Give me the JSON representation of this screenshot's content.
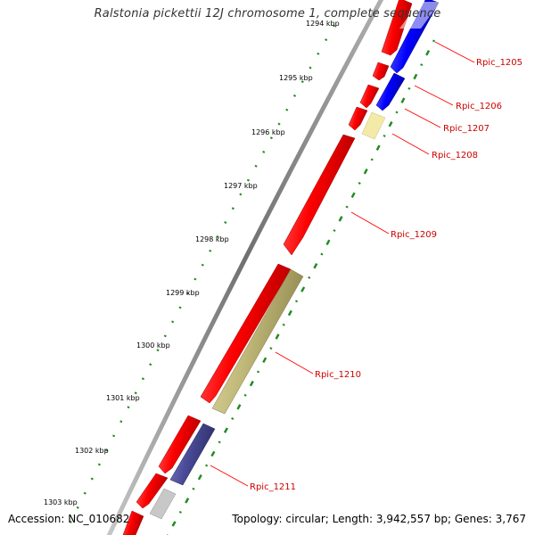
{
  "title": "Ralstonia pickettii 12J chromosome 1, complete sequence",
  "footer": {
    "accession": "Accession: NC_010682",
    "summary": "Topology: circular; Length: 3,942,557 bp; Genes: 3,767"
  },
  "ticks": [
    "1294 kbp",
    "1295 kbp",
    "1296 kbp",
    "1297 kbp",
    "1298 kbp",
    "1299 kbp",
    "1300 kbp",
    "1301 kbp",
    "1302 kbp",
    "1303 kbp"
  ],
  "genes": [
    {
      "label": "Rpic_1205"
    },
    {
      "label": "Rpic_1206"
    },
    {
      "label": "Rpic_1207"
    },
    {
      "label": "Rpic_1208"
    },
    {
      "label": "Rpic_1209"
    },
    {
      "label": "Rpic_1210"
    },
    {
      "label": "Rpic_1211"
    }
  ],
  "colors": {
    "forward_cds": "#ff0000",
    "reverse_cds": "#0000ff",
    "khaki_feature": "#c8c080",
    "pale_yellow_feature": "#f0e8a0",
    "purple_feature": "#5a5aa0",
    "gray_feature": "#c0c0c0",
    "backbone": "#888888",
    "tick_marks": "#228b22",
    "label_text": "#cc0000",
    "leader_line": "#ff0000"
  }
}
